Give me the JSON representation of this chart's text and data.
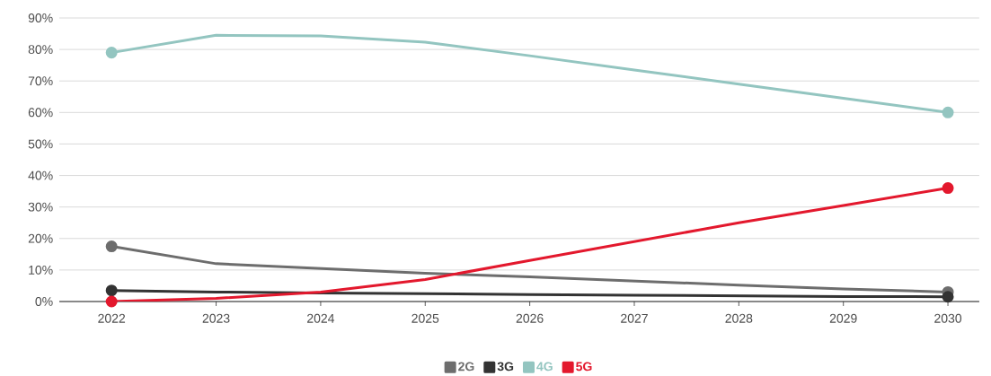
{
  "chart_data": {
    "type": "line",
    "x": [
      2022,
      2023,
      2024,
      2025,
      2026,
      2027,
      2028,
      2029,
      2030
    ],
    "series": [
      {
        "name": "2G",
        "color": "#6d6d6d",
        "values": [
          17.5,
          12,
          10.5,
          9,
          7.8,
          6.5,
          5.2,
          4,
          3
        ]
      },
      {
        "name": "3G",
        "color": "#333333",
        "values": [
          3.5,
          3,
          2.7,
          2.5,
          2.2,
          2,
          1.8,
          1.6,
          1.5
        ]
      },
      {
        "name": "4G",
        "color": "#93c5c0",
        "values": [
          79,
          84.5,
          84.3,
          82.3,
          78,
          73.5,
          69,
          64.5,
          60
        ]
      },
      {
        "name": "5G",
        "color": "#e3182d",
        "values": [
          0,
          1,
          3,
          7,
          13,
          19,
          25,
          30.5,
          36
        ]
      }
    ],
    "xlim": [
      2021.5,
      2030.3
    ],
    "xticks": [
      2022,
      2023,
      2024,
      2025,
      2026,
      2027,
      2028,
      2029,
      2030
    ],
    "ylim": [
      0,
      90
    ],
    "yticks": [
      {
        "value": 0,
        "label": "0%"
      },
      {
        "value": 10,
        "label": "10%"
      },
      {
        "value": 20,
        "label": "20%"
      },
      {
        "value": 30,
        "label": "30%"
      },
      {
        "value": 40,
        "label": "40%"
      },
      {
        "value": 50,
        "label": "50%"
      },
      {
        "value": 60,
        "label": "60%"
      },
      {
        "value": 70,
        "label": "70%"
      },
      {
        "value": 80,
        "label": "80%"
      },
      {
        "value": 90,
        "label": "90%"
      }
    ],
    "grid": "y",
    "legend": "bottom",
    "line_style": "solid"
  }
}
